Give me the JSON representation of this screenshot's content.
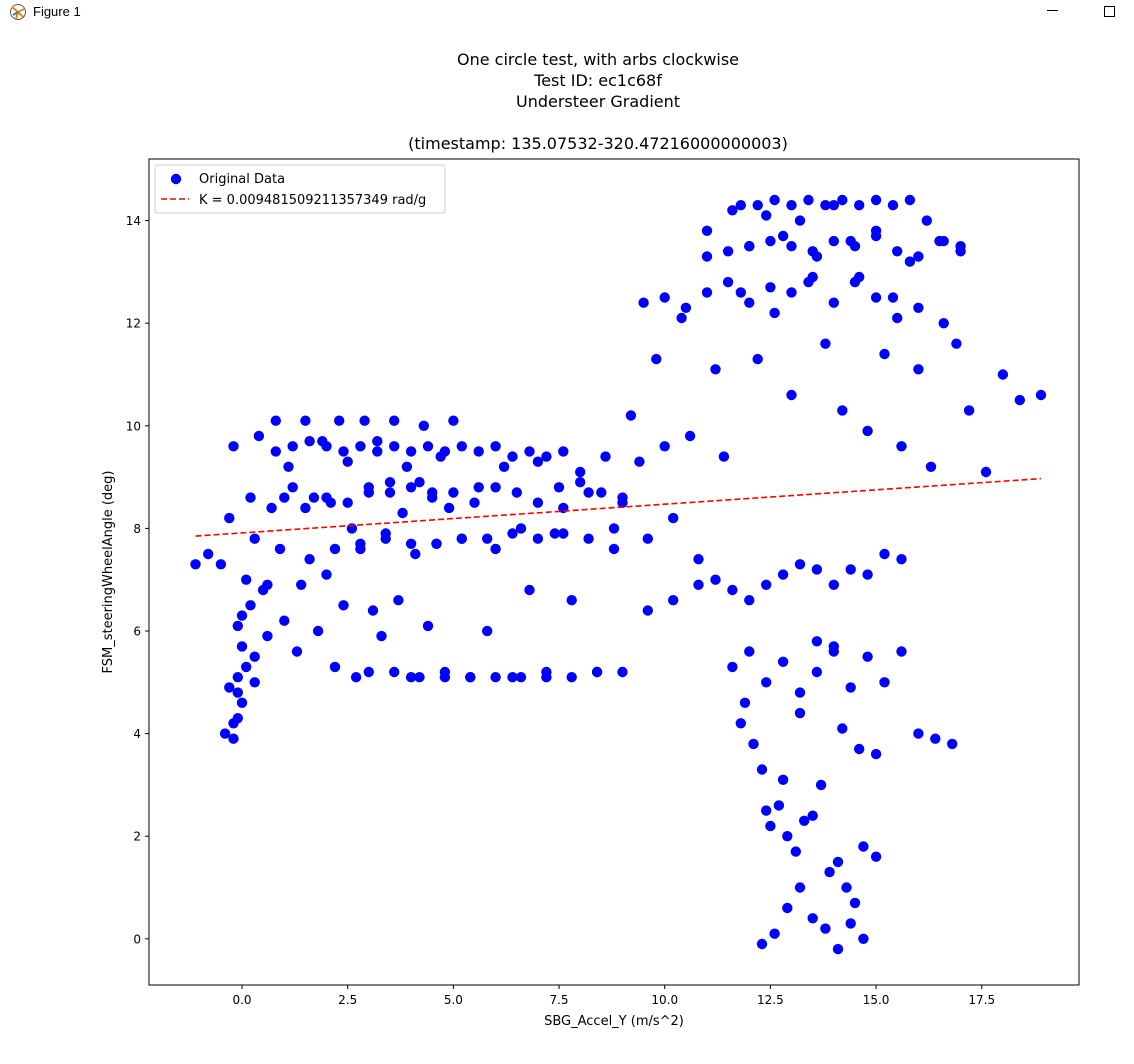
{
  "window": {
    "title": "Figure 1",
    "icon": "matplotlib-icon",
    "controls": [
      "minimize-icon",
      "maximize-icon"
    ]
  },
  "chart_data": {
    "type": "scatter",
    "title": "One circle test, with arbs clockwise\nTest ID: ec1c68f\nUndersteer Gradient\n\n(timestamp: 135.07532-320.47216000000003)",
    "xlabel": "SBG_Accel_Y (m/s^2)",
    "ylabel": "FSM_steeringWheelAngle (deg)",
    "xlim": [
      -2.2,
      19.8
    ],
    "ylim": [
      -0.9,
      15.2
    ],
    "xticks": [
      "0.0",
      "2.5",
      "5.0",
      "7.5",
      "10.0",
      "12.5",
      "15.0",
      "17.5"
    ],
    "yticks": [
      "0",
      "2",
      "4",
      "6",
      "8",
      "10",
      "12",
      "14"
    ],
    "grid": false,
    "legend_position": "upper-left",
    "colors": {
      "points": "#0000ff",
      "fit_line": "#ff0000"
    },
    "series": [
      {
        "name": "Original Data",
        "style": "scatter",
        "x": [
          -1.1,
          -0.8,
          -0.5,
          -0.4,
          -0.3,
          -0.3,
          -0.2,
          -0.2,
          -0.1,
          -0.1,
          -0.1,
          0.0,
          0.0,
          0.1,
          0.1,
          0.2,
          0.2,
          0.3,
          0.3,
          0.4,
          0.5,
          0.6,
          0.7,
          0.8,
          0.9,
          1.0,
          1.1,
          1.2,
          1.3,
          1.4,
          1.5,
          1.6,
          1.7,
          1.8,
          1.9,
          2.0,
          2.1,
          2.2,
          2.3,
          2.4,
          2.5,
          2.6,
          2.7,
          2.8,
          2.9,
          3.0,
          3.1,
          3.2,
          3.3,
          3.4,
          3.5,
          3.6,
          3.7,
          3.8,
          3.9,
          4.0,
          4.1,
          4.2,
          4.3,
          4.4,
          4.5,
          4.6,
          4.7,
          4.8,
          4.9,
          5.0,
          5.2,
          5.4,
          5.6,
          5.8,
          6.0,
          6.2,
          6.4,
          6.6,
          6.8,
          7.0,
          7.2,
          7.4,
          7.6,
          7.8,
          8.0,
          8.2,
          8.4,
          8.6,
          8.8,
          9.0,
          9.2,
          9.4,
          9.6,
          9.8,
          10.0,
          10.2,
          10.4,
          10.6,
          10.8,
          11.0,
          11.2,
          11.4,
          11.6,
          11.8,
          12.0,
          12.2,
          12.4,
          12.6,
          12.8,
          13.0,
          13.2,
          13.4,
          13.6,
          13.8,
          14.0,
          14.2,
          14.4,
          14.6,
          14.8,
          15.0,
          15.2,
          15.4,
          15.6,
          15.8,
          16.0,
          16.3,
          16.6,
          16.9,
          17.2,
          17.6,
          18.0,
          18.4,
          18.9,
          -0.2,
          -0.1,
          0.0,
          0.3,
          0.6,
          1.0,
          1.5,
          2.0,
          2.5,
          3.0,
          3.5,
          4.0,
          4.5,
          5.0,
          5.5,
          6.0,
          6.5,
          7.0,
          7.5,
          8.0,
          8.5,
          9.0,
          2.2,
          2.8,
          3.4,
          4.0,
          4.6,
          5.2,
          5.8,
          6.4,
          7.0,
          7.6,
          8.2,
          8.8,
          0.8,
          1.2,
          1.6,
          2.0,
          2.4,
          2.8,
          3.2,
          3.6,
          4.0,
          4.4,
          4.8,
          5.2,
          5.6,
          6.0,
          6.4,
          6.8,
          7.2,
          7.6,
          3.0,
          3.6,
          4.2,
          4.8,
          5.4,
          6.0,
          6.6,
          7.2,
          7.8,
          8.4,
          9.0,
          9.6,
          10.2,
          10.8,
          11.2,
          11.6,
          12.0,
          12.4,
          12.8,
          13.2,
          13.6,
          14.0,
          14.4,
          14.8,
          15.2,
          15.6,
          9.5,
          10.0,
          10.5,
          11.0,
          11.5,
          12.0,
          12.5,
          13.0,
          13.5,
          14.0,
          14.5,
          15.0,
          15.5,
          16.0,
          11.0,
          11.5,
          12.0,
          12.5,
          13.0,
          13.5,
          14.0,
          14.5,
          15.0,
          15.5,
          16.0,
          16.5,
          17.0,
          11.8,
          12.2,
          12.6,
          13.0,
          13.4,
          13.8,
          14.2,
          14.6,
          15.0,
          15.4,
          15.8,
          16.2,
          16.6,
          17.0,
          11.6,
          11.9,
          12.1,
          12.3,
          12.5,
          12.7,
          12.9,
          13.1,
          13.3,
          13.5,
          13.7,
          13.9,
          14.1,
          14.3,
          14.5,
          14.7,
          11.8,
          12.0,
          12.4,
          12.8,
          13.2,
          13.6,
          14.0,
          14.4,
          14.8,
          15.2,
          15.6,
          16.0,
          16.4,
          16.8,
          12.3,
          12.6,
          12.9,
          13.2,
          13.5,
          13.8,
          14.1,
          14.4,
          14.7,
          15.0,
          12.4,
          12.8,
          13.2,
          13.6,
          14.0,
          14.2,
          14.6,
          15.0
        ],
        "y": [
          7.3,
          7.5,
          7.3,
          4.0,
          8.2,
          4.9,
          3.9,
          9.6,
          5.1,
          4.3,
          6.1,
          5.7,
          4.6,
          7.0,
          5.3,
          6.5,
          8.6,
          5.5,
          7.8,
          9.8,
          6.8,
          5.9,
          8.4,
          10.1,
          7.6,
          6.2,
          9.2,
          8.8,
          5.6,
          6.9,
          10.1,
          7.4,
          8.6,
          6.0,
          9.7,
          7.1,
          8.5,
          5.3,
          10.1,
          6.5,
          9.3,
          8.0,
          5.1,
          7.6,
          10.1,
          8.8,
          6.4,
          9.5,
          5.9,
          7.9,
          8.7,
          10.1,
          6.6,
          8.3,
          9.2,
          5.1,
          7.5,
          8.9,
          10.0,
          6.1,
          8.7,
          7.7,
          9.4,
          5.2,
          8.4,
          10.1,
          7.8,
          5.1,
          8.8,
          6.0,
          7.6,
          9.2,
          5.1,
          8.0,
          6.8,
          9.3,
          5.2,
          7.9,
          8.4,
          6.6,
          9.1,
          8.7,
          5.2,
          9.4,
          7.6,
          8.5,
          10.2,
          9.3,
          7.8,
          11.3,
          9.6,
          8.2,
          12.1,
          9.8,
          7.4,
          13.8,
          11.1,
          9.4,
          14.2,
          12.6,
          13.5,
          11.3,
          14.1,
          12.2,
          13.7,
          10.6,
          14.0,
          12.8,
          13.3,
          11.6,
          14.3,
          10.3,
          13.6,
          12.9,
          9.9,
          13.8,
          11.4,
          12.5,
          9.6,
          13.2,
          11.1,
          9.2,
          12.0,
          11.6,
          10.3,
          9.1,
          11.0,
          10.5,
          10.6,
          4.2,
          4.8,
          6.3,
          5.0,
          6.9,
          8.6,
          8.4,
          8.6,
          8.5,
          8.7,
          8.9,
          8.8,
          8.6,
          8.7,
          8.5,
          8.8,
          8.7,
          8.5,
          8.8,
          8.9,
          8.7,
          8.6,
          7.6,
          7.7,
          7.8,
          7.7,
          7.7,
          7.8,
          7.8,
          7.9,
          7.8,
          7.9,
          7.8,
          8.0,
          9.5,
          9.6,
          9.7,
          9.6,
          9.5,
          9.6,
          9.7,
          9.6,
          9.5,
          9.6,
          9.5,
          9.6,
          9.5,
          9.6,
          9.4,
          9.5,
          9.4,
          9.5,
          5.2,
          5.2,
          5.1,
          5.1,
          5.1,
          5.1,
          5.1,
          5.1,
          5.1,
          5.2,
          5.2,
          6.4,
          6.6,
          6.9,
          7.0,
          6.8,
          6.6,
          6.9,
          7.1,
          7.3,
          7.2,
          6.9,
          7.2,
          7.1,
          7.5,
          7.4,
          12.4,
          12.5,
          12.3,
          12.6,
          12.8,
          12.4,
          12.7,
          12.6,
          12.9,
          12.4,
          12.8,
          12.5,
          12.1,
          12.3,
          13.3,
          13.4,
          13.5,
          13.6,
          13.5,
          13.4,
          13.6,
          13.5,
          13.7,
          13.4,
          13.3,
          13.6,
          13.5,
          14.3,
          14.3,
          14.4,
          14.3,
          14.4,
          14.3,
          14.4,
          14.3,
          14.4,
          14.3,
          14.4,
          14.0,
          13.6,
          13.4,
          5.3,
          4.6,
          3.8,
          3.3,
          2.2,
          2.6,
          2.0,
          1.7,
          2.3,
          2.4,
          3.0,
          1.3,
          1.5,
          1.0,
          0.7,
          1.8,
          4.2,
          5.6,
          5.0,
          5.4,
          4.8,
          5.2,
          5.7,
          4.9,
          5.5,
          5.0,
          5.6,
          4.0,
          3.9,
          3.8,
          -0.1,
          0.1,
          0.6,
          1.0,
          0.4,
          0.2,
          -0.2,
          0.3,
          0.0,
          1.6,
          2.5,
          3.1,
          4.4,
          5.8,
          5.6,
          4.1,
          3.7,
          3.6
        ]
      },
      {
        "name": "K = 0.009481509211357349 rad/g",
        "style": "dashed-line",
        "x": [
          -1.1,
          18.9
        ],
        "y": [
          7.85,
          8.97
        ]
      }
    ]
  }
}
